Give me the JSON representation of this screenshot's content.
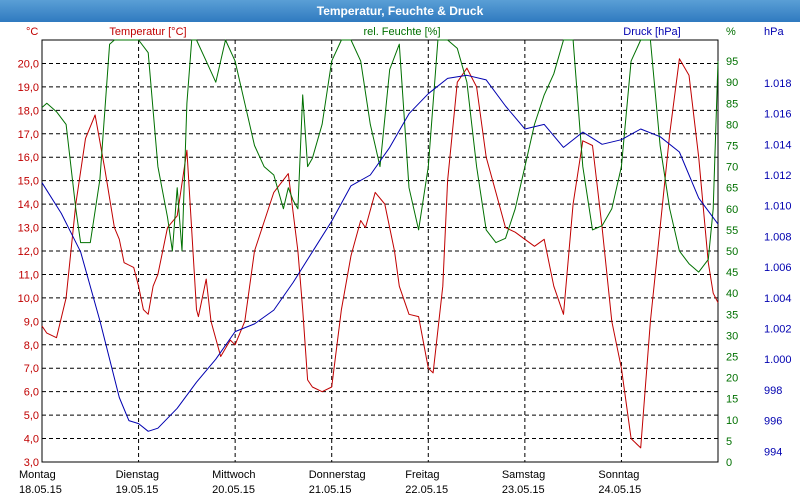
{
  "window": {
    "title": "Temperatur, Feuchte & Druck"
  },
  "chart_data": {
    "type": "line",
    "title": "Temperatur, Feuchte & Druck",
    "grid": true,
    "x_axis": {
      "range": [
        0,
        7
      ],
      "ticks": [
        {
          "day": "Montag",
          "date": "18.05.15"
        },
        {
          "day": "Dienstag",
          "date": "19.05.15"
        },
        {
          "day": "Mittwoch",
          "date": "20.05.15"
        },
        {
          "day": "Donnerstag",
          "date": "21.05.15"
        },
        {
          "day": "Freitag",
          "date": "22.05.15"
        },
        {
          "day": "Samstag",
          "date": "23.05.15"
        },
        {
          "day": "Sonntag",
          "date": "24.05.15"
        }
      ]
    },
    "axes": {
      "temperature": {
        "label": "Temperatur [°C]",
        "unit": "°C",
        "range": [
          3.0,
          21.0
        ],
        "ticks": [
          "3,0",
          "4,0",
          "5,0",
          "6,0",
          "7,0",
          "8,0",
          "9,0",
          "10,0",
          "11,0",
          "12,0",
          "13,0",
          "14,0",
          "15,0",
          "16,0",
          "17,0",
          "18,0",
          "19,0",
          "20,0"
        ]
      },
      "humidity": {
        "label": "rel. Feuchte [%]",
        "unit": "%",
        "range": [
          0,
          100
        ],
        "ticks": [
          "0",
          "5",
          "10",
          "15",
          "20",
          "25",
          "30",
          "35",
          "40",
          "45",
          "50",
          "55",
          "60",
          "65",
          "70",
          "75",
          "80",
          "85",
          "90",
          "95"
        ]
      },
      "pressure": {
        "label": "Druck [hPa]",
        "unit": "hPa",
        "range": [
          993.3,
          1020.8
        ],
        "ticks": [
          "994",
          "996",
          "998",
          "1.000",
          "1.002",
          "1.004",
          "1.006",
          "1.008",
          "1.010",
          "1.012",
          "1.014",
          "1.016",
          "1.018"
        ]
      }
    },
    "series": [
      {
        "name": "Temperatur [°C]",
        "axis": "temperature",
        "color": "#c00000",
        "x": [
          0,
          0.05,
          0.15,
          0.25,
          0.35,
          0.45,
          0.55,
          0.65,
          0.75,
          0.8,
          0.85,
          0.95,
          1.0,
          1.05,
          1.1,
          1.15,
          1.2,
          1.3,
          1.4,
          1.5,
          1.6,
          1.62,
          1.7,
          1.75,
          1.85,
          1.95,
          2.0,
          2.1,
          2.2,
          2.4,
          2.55,
          2.65,
          2.7,
          2.75,
          2.8,
          2.9,
          3.0,
          3.1,
          3.2,
          3.3,
          3.35,
          3.45,
          3.55,
          3.65,
          3.7,
          3.8,
          3.9,
          4.0,
          4.05,
          4.15,
          4.2,
          4.3,
          4.4,
          4.5,
          4.6,
          4.7,
          4.8,
          4.9,
          5.0,
          5.1,
          5.2,
          5.3,
          5.4,
          5.5,
          5.6,
          5.7,
          5.8,
          5.9,
          6.0,
          6.1,
          6.2,
          6.3,
          6.4,
          6.5,
          6.6,
          6.7,
          6.8,
          6.9,
          6.95,
          7.0
        ],
        "y": [
          8.8,
          8.5,
          8.3,
          10.0,
          14.0,
          16.8,
          17.8,
          15.5,
          13.0,
          12.5,
          11.5,
          11.3,
          10.5,
          9.5,
          9.3,
          10.5,
          11.0,
          13.0,
          13.5,
          16.3,
          9.5,
          9.2,
          10.8,
          9.0,
          7.5,
          8.2,
          8.0,
          9.0,
          12.0,
          14.5,
          15.3,
          12.0,
          9.5,
          6.5,
          6.2,
          6.0,
          6.2,
          9.5,
          11.8,
          13.3,
          13.0,
          14.5,
          14.0,
          12.0,
          10.5,
          9.3,
          9.2,
          7.0,
          6.8,
          10.5,
          15.0,
          19.2,
          19.8,
          19.0,
          16.0,
          14.5,
          13.0,
          12.8,
          12.5,
          12.2,
          12.5,
          10.5,
          9.3,
          14.0,
          16.7,
          16.5,
          13.0,
          9.0,
          7.0,
          4.0,
          3.6,
          9.0,
          13.0,
          17.0,
          20.2,
          19.5,
          16.0,
          11.5,
          10.2,
          9.8
        ]
      },
      {
        "name": "rel. Feuchte [%]",
        "axis": "humidity",
        "color": "#007000",
        "x": [
          0,
          0.05,
          0.15,
          0.25,
          0.35,
          0.4,
          0.5,
          0.6,
          0.7,
          0.75,
          0.8,
          0.9,
          1.0,
          1.1,
          1.2,
          1.3,
          1.35,
          1.4,
          1.45,
          1.5,
          1.55,
          1.6,
          1.7,
          1.8,
          1.9,
          2.0,
          2.1,
          2.2,
          2.3,
          2.4,
          2.5,
          2.55,
          2.6,
          2.65,
          2.7,
          2.75,
          2.8,
          2.9,
          3.0,
          3.1,
          3.2,
          3.3,
          3.4,
          3.45,
          3.5,
          3.6,
          3.7,
          3.8,
          3.9,
          4.0,
          4.1,
          4.2,
          4.3,
          4.4,
          4.5,
          4.6,
          4.7,
          4.8,
          4.9,
          5.0,
          5.1,
          5.2,
          5.3,
          5.4,
          5.5,
          5.6,
          5.7,
          5.8,
          5.9,
          6.0,
          6.1,
          6.2,
          6.3,
          6.4,
          6.5,
          6.6,
          6.7,
          6.8,
          6.9,
          6.95,
          7.0
        ],
        "y": [
          84,
          85,
          83,
          80,
          60,
          52,
          52,
          67,
          99,
          100,
          100,
          100,
          100,
          97,
          70,
          58,
          50,
          65,
          50,
          85,
          100,
          100,
          95,
          90,
          100,
          95,
          85,
          75,
          70,
          68,
          60,
          65,
          62,
          60,
          87,
          70,
          72,
          80,
          95,
          100,
          100,
          95,
          80,
          75,
          70,
          93,
          99,
          65,
          55,
          70,
          100,
          100,
          98,
          90,
          70,
          55,
          52,
          53,
          60,
          70,
          80,
          87,
          92,
          100,
          100,
          70,
          55,
          56,
          60,
          70,
          95,
          100,
          100,
          75,
          60,
          50,
          47,
          45,
          48,
          60,
          95
        ]
      },
      {
        "name": "Druck [hPa]",
        "axis": "pressure",
        "color": "#0000b0",
        "x": [
          0,
          0.2,
          0.4,
          0.6,
          0.8,
          0.9,
          1.0,
          1.1,
          1.2,
          1.4,
          1.6,
          1.8,
          2.0,
          2.2,
          2.4,
          2.6,
          2.8,
          3.0,
          3.2,
          3.4,
          3.6,
          3.8,
          4.0,
          4.2,
          4.4,
          4.6,
          4.8,
          5.0,
          5.2,
          5.4,
          5.6,
          5.8,
          6.0,
          6.2,
          6.4,
          6.6,
          6.8,
          7.0
        ],
        "y": [
          1011.5,
          1009.5,
          1007.0,
          1002.5,
          997.5,
          996.0,
          995.8,
          995.3,
          995.5,
          996.8,
          998.5,
          1000.0,
          1001.8,
          1002.3,
          1003.2,
          1005.0,
          1007.0,
          1009.0,
          1011.3,
          1012.0,
          1013.8,
          1016.0,
          1017.3,
          1018.3,
          1018.5,
          1018.2,
          1016.5,
          1015.0,
          1015.3,
          1013.8,
          1014.8,
          1014.0,
          1014.3,
          1015.0,
          1014.5,
          1013.5,
          1010.5,
          1008.8
        ]
      }
    ]
  }
}
